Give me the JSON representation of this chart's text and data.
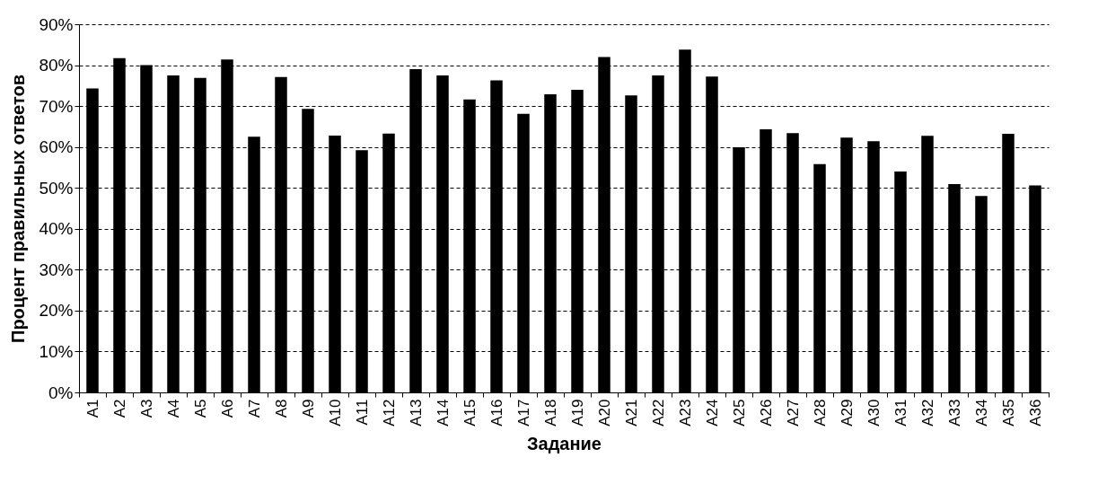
{
  "chart_data": {
    "type": "bar",
    "xlabel": "Задание",
    "ylabel": "Процент правильных ответов",
    "categories": [
      "A1",
      "A2",
      "A3",
      "A4",
      "A5",
      "A6",
      "A7",
      "A8",
      "A9",
      "A10",
      "A11",
      "A12",
      "A13",
      "A14",
      "A15",
      "A16",
      "A17",
      "A18",
      "A19",
      "A20",
      "A21",
      "A22",
      "A23",
      "A24",
      "A25",
      "A26",
      "A27",
      "A28",
      "A29",
      "A30",
      "A31",
      "A32",
      "A33",
      "A34",
      "A35",
      "A36"
    ],
    "values": [
      74.3,
      81.7,
      80,
      77.5,
      76.9,
      81.4,
      62.5,
      77.1,
      69.3,
      62.8,
      59.2,
      63.3,
      79,
      77.5,
      71.6,
      76.3,
      68.1,
      72.9,
      74,
      82,
      72.6,
      77.5,
      83.8,
      77.2,
      59.9,
      64.3,
      63.4,
      55.8,
      62.3,
      61.4,
      54,
      62.7,
      50.9,
      48,
      63.2,
      50.6
    ],
    "color": "#000000",
    "ylim": [
      0,
      90
    ],
    "yticks": [
      {
        "value": 0,
        "label": "0%"
      },
      {
        "value": 10,
        "label": "10%"
      },
      {
        "value": 20,
        "label": "20%"
      },
      {
        "value": 30,
        "label": "30%"
      },
      {
        "value": 40,
        "label": "40%"
      },
      {
        "value": 50,
        "label": "50%"
      },
      {
        "value": 60,
        "label": "60%"
      },
      {
        "value": 70,
        "label": "70%"
      },
      {
        "value": 80,
        "label": "80%"
      },
      {
        "value": 90,
        "label": "90%"
      }
    ],
    "grid": "y"
  }
}
